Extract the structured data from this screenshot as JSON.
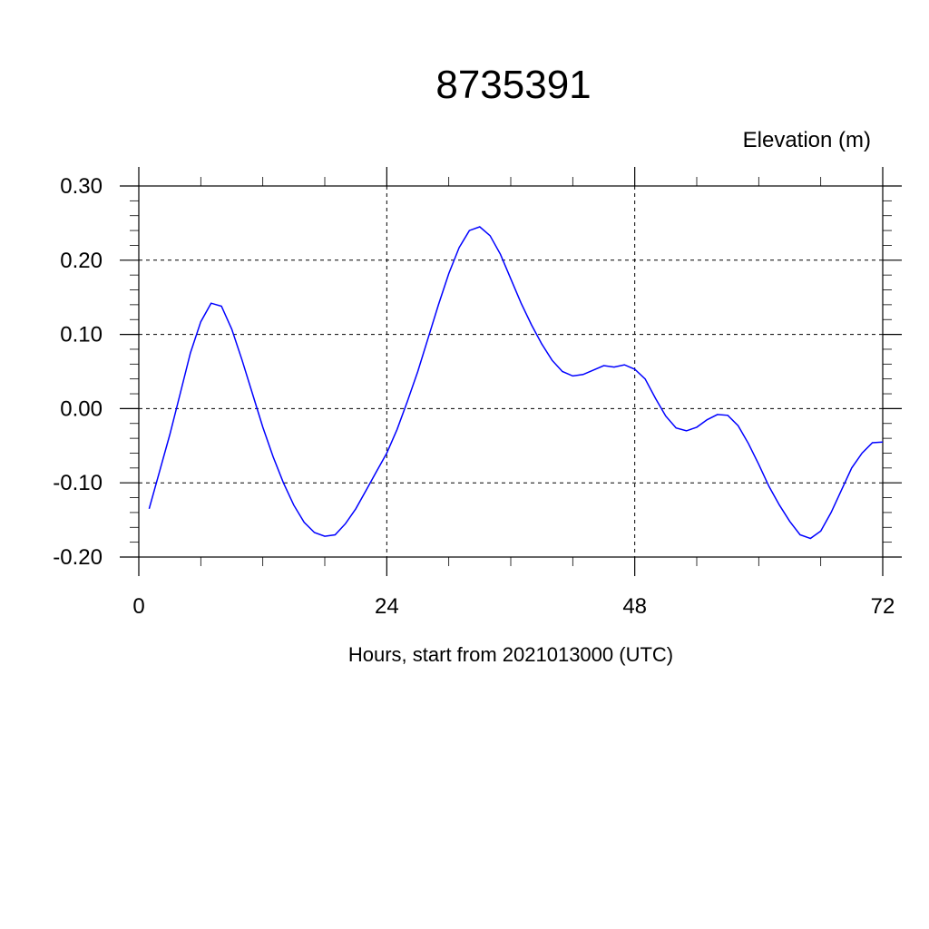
{
  "chart_data": {
    "type": "line",
    "title": "8735391",
    "ylabel": "Elevation (m)",
    "xlabel": "Hours, start from 2021013000 (UTC)",
    "xlim": [
      0,
      72
    ],
    "ylim": [
      -0.2,
      0.3
    ],
    "x_ticks": [
      0,
      24,
      48,
      72
    ],
    "x_tick_labels": [
      "0",
      "24",
      "48",
      "72"
    ],
    "y_ticks": [
      -0.2,
      -0.1,
      0.0,
      0.1,
      0.2,
      0.3
    ],
    "y_tick_labels": [
      "-0.20",
      "-0.10",
      "0.00",
      "0.10",
      "0.20",
      "0.30"
    ],
    "grid": true,
    "colors": {
      "series": "#0000ff",
      "axis": "#000000"
    },
    "series": [
      {
        "x": [
          1,
          2,
          3,
          4,
          5,
          6,
          7,
          8,
          9,
          10,
          11,
          12,
          13,
          14,
          15,
          16,
          17,
          18,
          19,
          20,
          21,
          22,
          23,
          24,
          25,
          26,
          27,
          28,
          29,
          30,
          31,
          32,
          33,
          34,
          35,
          36,
          37,
          38,
          39,
          40,
          41,
          42,
          43,
          44,
          45,
          46,
          47,
          48,
          49,
          50,
          51,
          52,
          53,
          54,
          55,
          56,
          57,
          58,
          59,
          60,
          61,
          62,
          63,
          64,
          65,
          66,
          67,
          68,
          69,
          70,
          71,
          72
        ],
        "values": [
          -0.135,
          -0.085,
          -0.035,
          0.02,
          0.075,
          0.117,
          0.142,
          0.138,
          0.107,
          0.065,
          0.02,
          -0.025,
          -0.065,
          -0.1,
          -0.13,
          -0.153,
          -0.167,
          -0.172,
          -0.17,
          -0.155,
          -0.135,
          -0.11,
          -0.085,
          -0.06,
          -0.028,
          0.01,
          0.05,
          0.095,
          0.14,
          0.182,
          0.217,
          0.24,
          0.245,
          0.233,
          0.208,
          0.175,
          0.142,
          0.113,
          0.087,
          0.065,
          0.05,
          0.044,
          0.046,
          0.052,
          0.058,
          0.056,
          0.059,
          0.053,
          0.04,
          0.014,
          -0.01,
          -0.026,
          -0.03,
          -0.025,
          -0.015,
          -0.008,
          -0.009,
          -0.023,
          -0.047,
          -0.075,
          -0.105,
          -0.13,
          -0.152,
          -0.17,
          -0.175,
          -0.165,
          -0.14,
          -0.11,
          -0.08,
          -0.06,
          -0.046,
          -0.045
        ]
      }
    ]
  }
}
